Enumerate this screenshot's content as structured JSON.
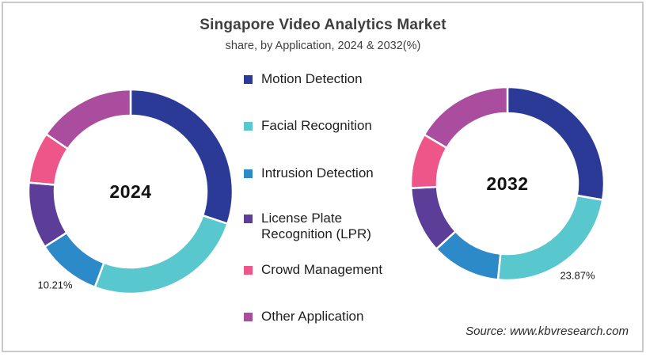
{
  "title": "Singapore Video Analytics Market",
  "subtitle": "share, by Application, 2024 & 2032(%)",
  "source": "Source: www.kbvresearch.com",
  "palette": {
    "motion_detection": "#2C3A97",
    "facial_recognition": "#58C7CE",
    "intrusion_detection": "#2C8AC8",
    "license_plate_recognition": "#5C3E99",
    "crowd_management": "#EE5588",
    "other_application": "#AB4D9F"
  },
  "legend": {
    "items": [
      {
        "label": "Motion Detection",
        "color": "#2C3A97"
      },
      {
        "label": "Facial Recognition",
        "color": "#58C7CE"
      },
      {
        "label": "Intrusion Detection",
        "color": "#2C8AC8"
      },
      {
        "label": "License Plate Recognition (LPR)",
        "color": "#5C3E99"
      },
      {
        "label": "Crowd Management",
        "color": "#EE5588"
      },
      {
        "label": "Other Application",
        "color": "#AB4D9F"
      }
    ]
  },
  "chart_data": [
    {
      "type": "pie",
      "subtype": "donut",
      "center_label": "2024",
      "categories": [
        "Motion Detection",
        "Facial Recognition",
        "Intrusion Detection",
        "License Plate Recognition (LPR)",
        "Crowd Management",
        "Other Application"
      ],
      "values": [
        30.1,
        25.6,
        10.21,
        10.5,
        8.1,
        15.49
      ],
      "colors": [
        "#2C3A97",
        "#58C7CE",
        "#2C8AC8",
        "#5C3E99",
        "#EE5588",
        "#AB4D9F"
      ],
      "unit": "%",
      "start_angle_deg": 0,
      "direction": "clockwise",
      "data_labels": [
        {
          "category": "Intrusion Detection",
          "text": "10.21%"
        }
      ],
      "legend_position": "center-between-charts"
    },
    {
      "type": "pie",
      "subtype": "donut",
      "center_label": "2032",
      "categories": [
        "Motion Detection",
        "Facial Recognition",
        "Intrusion Detection",
        "License Plate Recognition (LPR)",
        "Crowd Management",
        "Other Application"
      ],
      "values": [
        27.7,
        23.87,
        11.6,
        11.1,
        9.2,
        16.53
      ],
      "colors": [
        "#2C3A97",
        "#58C7CE",
        "#2C8AC8",
        "#5C3E99",
        "#EE5588",
        "#AB4D9F"
      ],
      "unit": "%",
      "start_angle_deg": 0,
      "direction": "clockwise",
      "data_labels": [
        {
          "category": "Facial Recognition",
          "text": "23.87%"
        }
      ],
      "legend_position": "center-between-charts"
    }
  ]
}
